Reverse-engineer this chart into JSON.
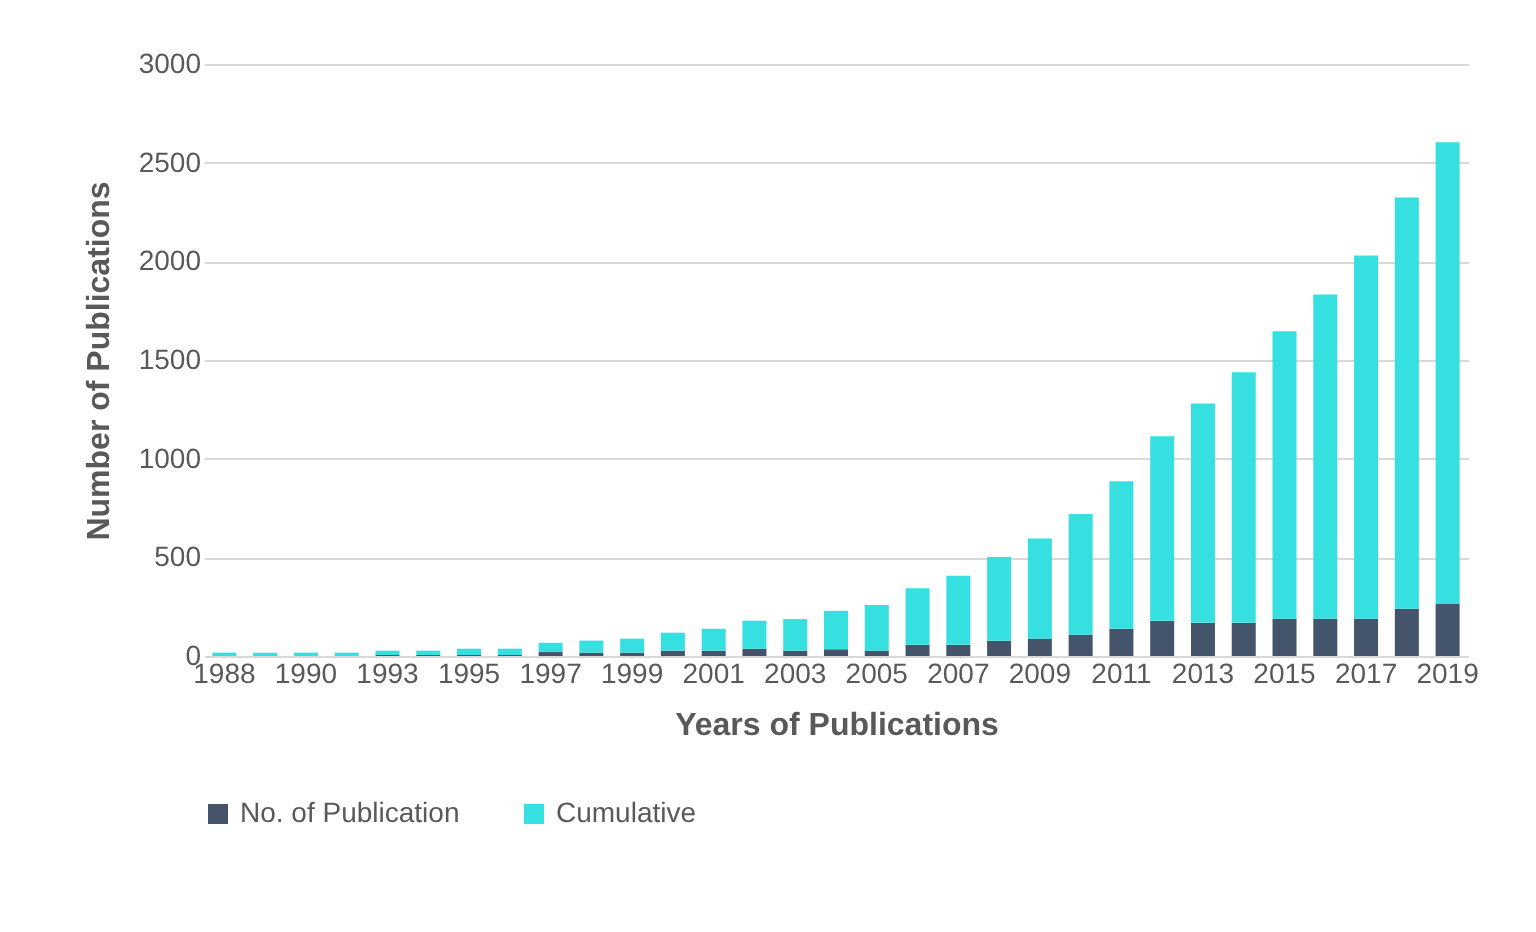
{
  "chart_data": {
    "type": "bar",
    "stacked": true,
    "xlabel": "Years of Publications",
    "ylabel": "Number of Publications",
    "categories": [
      "1988",
      null,
      "1990",
      null,
      "1993",
      null,
      "1995",
      null,
      "1997",
      null,
      "1999",
      null,
      "2001",
      null,
      "2003",
      null,
      "2005",
      null,
      "2007",
      null,
      "2009",
      null,
      "2011",
      null,
      "2013",
      null,
      "2015",
      null,
      "2017",
      null,
      "2019"
    ],
    "series": [
      {
        "name": "No. of Publication",
        "color": "#44546a",
        "values": [
          0,
          0,
          0,
          0,
          5,
          5,
          5,
          5,
          20,
          17,
          17,
          27,
          27,
          37,
          27,
          34,
          27,
          57,
          57,
          77,
          88,
          108,
          138,
          178,
          168,
          168,
          189,
          189,
          189,
          239,
          263
        ]
      },
      {
        "name": "Cumulative",
        "color": "#37e0e0",
        "values": [
          17,
          17,
          17,
          17,
          22,
          22,
          32,
          32,
          47,
          61,
          71,
          91,
          111,
          142,
          160,
          195,
          232,
          286,
          350,
          425,
          508,
          612,
          748,
          936,
          1111,
          1270,
          1457,
          1643,
          1841,
          2084,
          2340
        ]
      }
    ],
    "ylim": [
      0,
      3000
    ],
    "yticks": [
      0,
      500,
      1000,
      1500,
      2000,
      2500,
      3000
    ],
    "grid": "y",
    "legend": "bottom"
  }
}
